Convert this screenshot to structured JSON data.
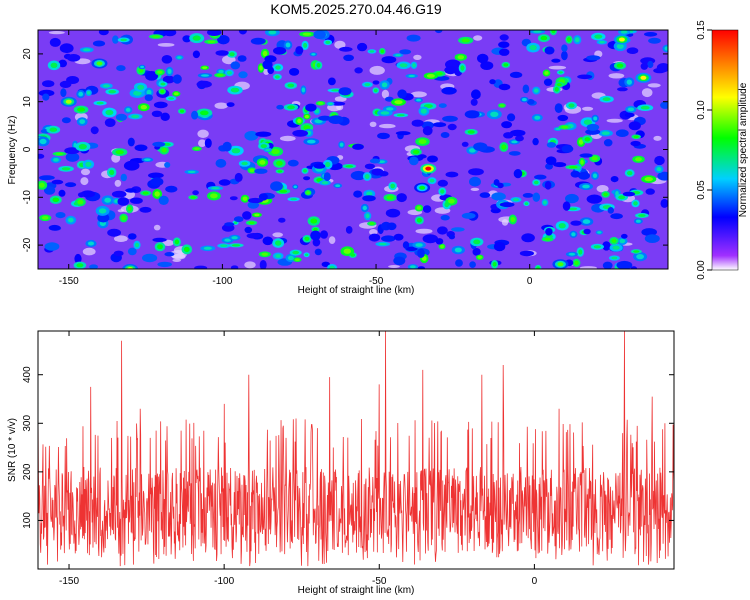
{
  "chart_data": [
    {
      "type": "heatmap",
      "title": "KOM5.2025.270.04.46.G19",
      "xlabel": "Height of straight line (km)",
      "ylabel": "Frequency (Hz)",
      "xlim": [
        -160,
        45
      ],
      "ylim": [
        -25,
        25
      ],
      "x_ticks": [
        -150,
        -100,
        -50,
        0
      ],
      "y_ticks": [
        -20,
        -10,
        0,
        10,
        20
      ],
      "colorbar": {
        "label": "Normalized spectral amplitude",
        "range": [
          0.0,
          0.15
        ],
        "ticks": [
          "0.00",
          "0.05",
          "0.10",
          "0.15"
        ]
      },
      "peak": {
        "x": -33,
        "y": -4,
        "value": 0.15
      },
      "notable_maxima": [
        {
          "x": -150,
          "y": 10,
          "value": 0.1
        },
        {
          "x": -140,
          "y": 18,
          "value": 0.09
        },
        {
          "x": 37,
          "y": 15,
          "value": 0.11
        },
        {
          "x": 30,
          "y": 23,
          "value": 0.11
        },
        {
          "x": -130,
          "y": -25,
          "value": 0.1
        },
        {
          "x": 10,
          "y": -24,
          "value": 0.09
        },
        {
          "x": -35,
          "y": -8,
          "value": 0.08
        }
      ],
      "background_level": 0.03
    },
    {
      "type": "line",
      "xlabel": "Height of straight line (km)",
      "ylabel": "SNR (10 * v/v)",
      "xlim": [
        -160,
        45
      ],
      "ylim": [
        0,
        490
      ],
      "x_ticks": [
        -150,
        -100,
        -50,
        0
      ],
      "y_ticks": [
        100,
        200,
        300,
        400
      ],
      "series": [
        {
          "name": "SNR",
          "color": "#ee3333",
          "typical_range": [
            30,
            250
          ],
          "baseline": 120,
          "spikes": [
            {
              "x": -133,
              "y": 470
            },
            {
              "x": -143,
              "y": 375
            },
            {
              "x": -48,
              "y": 490
            },
            {
              "x": 29,
              "y": 490
            },
            {
              "x": -10,
              "y": 420
            },
            {
              "x": -36,
              "y": 410
            },
            {
              "x": -92,
              "y": 400
            },
            {
              "x": -66,
              "y": 395
            },
            {
              "x": -17,
              "y": 400
            },
            {
              "x": -50,
              "y": 380
            },
            {
              "x": -127,
              "y": 330
            },
            {
              "x": -100,
              "y": 340
            },
            {
              "x": -122,
              "y": 285
            },
            {
              "x": 8,
              "y": 330
            },
            {
              "x": 38,
              "y": 355
            },
            {
              "x": -160,
              "y": 330
            },
            {
              "x": 42,
              "y": 300
            },
            {
              "x": -81,
              "y": 295
            }
          ]
        }
      ]
    }
  ]
}
